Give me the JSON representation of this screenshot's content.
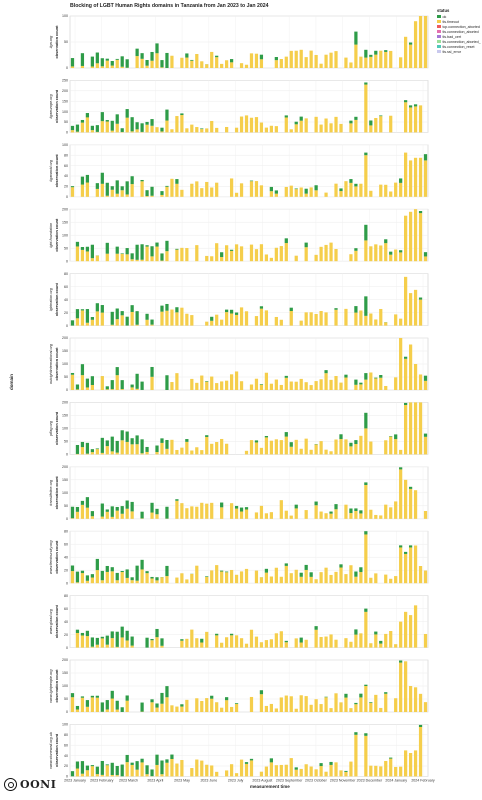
{
  "title": "Blocking of LGBT Human Rights domains in Tanzania from Jan 2023 to Jan 2024",
  "y_axis_title": "domain",
  "x_axis_title": "measurement time",
  "panel_ylabel": "observation count",
  "logo_text": "OONI",
  "legend": {
    "title": "status",
    "items": [
      {
        "name": "ok",
        "color": "#2e9c48"
      },
      {
        "name": "tls.timeout",
        "color": "#f5ce4b"
      },
      {
        "name": "tcp.connection_aborted",
        "color": "#ee5c5c"
      },
      {
        "name": "tls.connection_aborted",
        "color": "#e46fb0"
      },
      {
        "name": "tls.bad_cert",
        "color": "#a678d6"
      },
      {
        "name": "tls.connection_aborted_",
        "color": "#9adf9a"
      },
      {
        "name": "tls.connection_reset",
        "color": "#4fc9b8"
      },
      {
        "name": "tls.ssl_error",
        "color": "#c9c9ee"
      }
    ]
  },
  "x_ticks": [
    "2023 January",
    "2023 February",
    "2023 March",
    "2023 April",
    "2023 May",
    "2023 June",
    "2023 July",
    "2023 August",
    "2023 September",
    "2023 October",
    "2023 November",
    "2023 December",
    "2024 January",
    "2024 February"
  ],
  "chart_data": {
    "type": "bar",
    "stacked": true,
    "facets": [
      {
        "domain": "ilga.org",
        "ymax": 100,
        "yticks": [
          0,
          50,
          100
        ],
        "spikes": [
          [
            57,
            45,
            25
          ],
          [
            59,
            20,
            15
          ],
          [
            71,
            10,
            50
          ]
        ],
        "blocked_spike": [
          [
            67,
            60
          ],
          [
            68,
            45
          ],
          [
            69,
            90
          ],
          [
            70,
            130
          ],
          [
            71,
            100
          ]
        ]
      },
      {
        "domain": "ilgaeurope.org",
        "ymax": 250,
        "yticks": [
          0,
          50,
          100,
          150,
          200,
          250
        ],
        "spikes": [
          [
            57,
            60,
            15
          ],
          [
            59,
            230,
            10
          ]
        ],
        "blocked_spike": [
          [
            67,
            145
          ],
          [
            68,
            120
          ],
          [
            69,
            125
          ],
          [
            70,
            130
          ]
        ]
      },
      {
        "domain": "ilgaworld.org",
        "ymax": 100,
        "yticks": [
          0,
          20,
          40,
          60,
          80,
          100
        ],
        "spikes": [
          [
            57,
            20,
            5
          ],
          [
            59,
            80,
            5
          ],
          [
            71,
            70,
            12
          ]
        ],
        "blocked_spike": [
          [
            67,
            85
          ],
          [
            68,
            70
          ],
          [
            69,
            75
          ],
          [
            70,
            75
          ]
        ]
      },
      {
        "domain": "lgbt.foundation",
        "ymax": 200,
        "yticks": [
          0,
          50,
          100,
          150,
          200
        ],
        "spikes": [
          [
            57,
            40,
            10
          ],
          [
            59,
            80,
            60
          ]
        ],
        "blocked_spike": [
          [
            67,
            175
          ],
          [
            68,
            190
          ],
          [
            69,
            200
          ],
          [
            70,
            185
          ]
        ]
      },
      {
        "domain": "lgbtnation.org",
        "ymax": 80,
        "yticks": [
          0,
          20,
          40,
          60,
          80
        ],
        "spikes": [
          [
            57,
            20,
            10
          ],
          [
            59,
            15,
            30
          ]
        ],
        "blocked_spike": [
          [
            67,
            75
          ],
          [
            68,
            50
          ],
          [
            69,
            55
          ],
          [
            70,
            40
          ]
        ]
      },
      {
        "domain": "outrightinternational.org",
        "ymax": 200,
        "yticks": [
          0,
          50,
          100,
          150,
          200
        ],
        "spikes": [
          [
            57,
            20,
            20
          ],
          [
            59,
            40,
            25
          ]
        ],
        "blocked_spike": [
          [
            66,
            210
          ],
          [
            67,
            120
          ],
          [
            68,
            175
          ],
          [
            69,
            100
          ]
        ]
      },
      {
        "domain": "pflag.org",
        "ymax": 200,
        "yticks": [
          0,
          50,
          100,
          150,
          200
        ],
        "spikes": [
          [
            57,
            40,
            15
          ],
          [
            59,
            100,
            60
          ]
        ],
        "blocked_spike": [
          [
            67,
            190
          ],
          [
            68,
            200
          ],
          [
            69,
            220
          ],
          [
            70,
            215
          ]
        ]
      },
      {
        "domain": "translifeline.org",
        "ymax": 200,
        "yticks": [
          0,
          50,
          100,
          150,
          200
        ],
        "spikes": [
          [
            57,
            30,
            10
          ],
          [
            59,
            130,
            10
          ]
        ],
        "blocked_spike": [
          [
            66,
            190
          ],
          [
            67,
            150
          ],
          [
            68,
            115
          ],
          [
            69,
            110
          ]
        ]
      },
      {
        "domain": "www.feminurcity.org",
        "ymax": 80,
        "yticks": [
          0,
          20,
          40,
          60,
          80
        ],
        "spikes": [
          [
            57,
            10,
            8
          ],
          [
            59,
            75,
            5
          ]
        ],
        "blocked_spike": [
          [
            66,
            55
          ],
          [
            67,
            45
          ],
          [
            68,
            55
          ],
          [
            69,
            58
          ]
        ]
      },
      {
        "domain": "www.glaad.org",
        "ymax": 80,
        "yticks": [
          0,
          20,
          40,
          60,
          80
        ],
        "spikes": [
          [
            57,
            20,
            8
          ],
          [
            59,
            55,
            5
          ]
        ],
        "blocked_spike": [
          [
            66,
            40
          ],
          [
            67,
            55
          ],
          [
            68,
            50
          ],
          [
            69,
            65
          ]
        ]
      },
      {
        "domain": "www.lgbtpeople.org",
        "ymax": 200,
        "yticks": [
          0,
          50,
          100,
          150,
          200
        ],
        "spikes": [
          [
            57,
            30,
            5
          ],
          [
            59,
            100,
            5
          ]
        ],
        "blocked_spike": [
          [
            66,
            190
          ],
          [
            67,
            195
          ],
          [
            68,
            100
          ],
          [
            69,
            95
          ]
        ]
      },
      {
        "domain": "www.stonewall.org.uk",
        "ymax": 100,
        "yticks": [
          0,
          20,
          40,
          60,
          80,
          100
        ],
        "spikes": [
          [
            57,
            80,
            5
          ],
          [
            59,
            78,
            5
          ]
        ],
        "blocked_spike": [
          [
            67,
            50
          ],
          [
            68,
            45
          ],
          [
            69,
            50
          ],
          [
            70,
            95
          ]
        ]
      }
    ]
  }
}
